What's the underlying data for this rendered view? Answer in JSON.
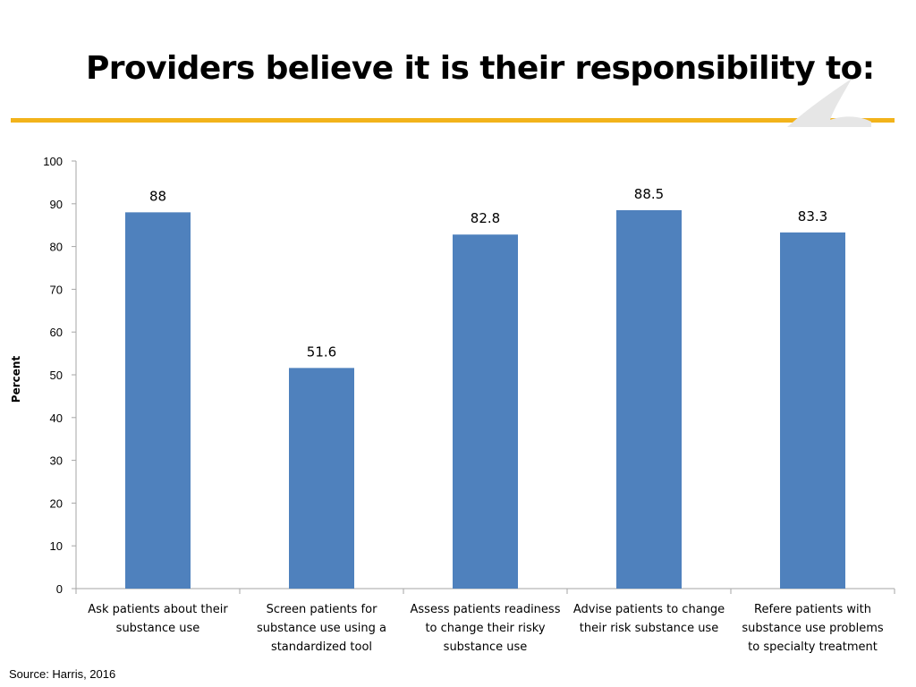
{
  "title": "Providers believe it is their responsibility to:",
  "source": "Source: Harris, 2016",
  "colors": {
    "bar": "#4F81BD",
    "rule": "#F2B31B",
    "axis": "#A6A6A6",
    "logo": "#E6E6E6"
  },
  "chart_data": {
    "type": "bar",
    "title": "Providers believe it is their responsibility to:",
    "xlabel": "",
    "ylabel": "Percent",
    "ylim": [
      0,
      100
    ],
    "yticks": [
      0,
      10,
      20,
      30,
      40,
      50,
      60,
      70,
      80,
      90,
      100
    ],
    "grid": false,
    "categories": [
      [
        "Ask patients about their",
        "substance use"
      ],
      [
        "Screen patients for",
        "substance use using a",
        "standardized tool"
      ],
      [
        "Assess patients readiness",
        "to change their risky",
        "substance use"
      ],
      [
        "Advise patients to change",
        "their risk substance use"
      ],
      [
        "Refere patients with",
        "substance use problems",
        "to specialty treatment"
      ]
    ],
    "values": [
      88,
      51.6,
      82.8,
      88.5,
      83.3
    ],
    "value_labels": [
      "88",
      "51.6",
      "82.8",
      "88.5",
      "83.3"
    ]
  }
}
